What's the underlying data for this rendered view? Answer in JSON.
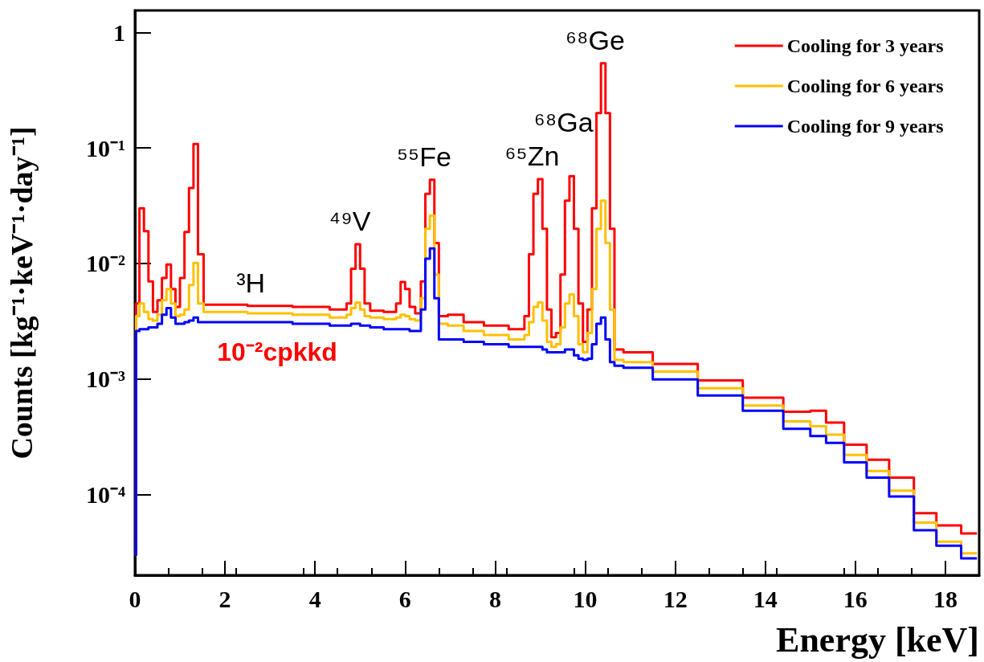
{
  "chart_data": {
    "type": "step",
    "xlabel": "Energy [keV]",
    "ylabel": "Counts [kg⁻¹·keV⁻¹·day⁻¹]",
    "x": [
      0,
      0.05,
      0.15,
      0.25,
      0.35,
      0.45,
      0.55,
      0.65,
      0.75,
      0.85,
      0.95,
      1.05,
      1.15,
      1.25,
      1.35,
      1.45,
      1.6,
      2,
      3,
      4,
      4.65,
      4.75,
      4.85,
      4.95,
      5.05,
      5.15,
      5.3,
      5.75,
      5.85,
      5.95,
      6.05,
      6.15,
      6.3,
      6.4,
      6.5,
      6.6,
      6.7,
      6.8,
      7.1,
      7.5,
      8,
      8.6,
      8.7,
      8.8,
      8.9,
      9.0,
      9.1,
      9.2,
      9.3,
      9.4,
      9.5,
      9.6,
      9.7,
      9.8,
      9.9,
      10.0,
      10.1,
      10.2,
      10.3,
      10.4,
      10.5,
      10.6,
      10.7,
      11,
      12,
      13,
      14,
      14.8,
      15.2,
      15.5,
      16,
      16.5,
      17,
      17.6,
      18,
      18.7
    ],
    "series": [
      {
        "name": "Cooling for 3 years",
        "color": "#ff0000",
        "values": [
          3e-05,
          0.0045,
          0.03,
          0.019,
          0.007,
          0.0038,
          0.0048,
          0.0075,
          0.0098,
          0.006,
          0.0042,
          0.0075,
          0.0187,
          0.045,
          0.108,
          0.012,
          0.0044,
          0.0044,
          0.0043,
          0.0042,
          0.004,
          0.0045,
          0.009,
          0.0147,
          0.009,
          0.0045,
          0.0039,
          0.0038,
          0.0045,
          0.0069,
          0.006,
          0.0042,
          0.0037,
          0.007,
          0.04,
          0.053,
          0.015,
          0.0035,
          0.0036,
          0.0031,
          0.0029,
          0.0027,
          0.0035,
          0.012,
          0.04,
          0.0536,
          0.02,
          0.004,
          0.0023,
          0.0025,
          0.008,
          0.035,
          0.057,
          0.02,
          0.0045,
          0.0021,
          0.004,
          0.03,
          0.2,
          0.54,
          0.2,
          0.02,
          0.0018,
          0.0017,
          0.00135,
          0.00097,
          0.00069,
          0.00052,
          0.00053,
          0.00042,
          0.00027,
          0.0002,
          0.00014,
          6.9e-05,
          5.4e-05,
          4.6e-05
        ]
      },
      {
        "name": "Cooling for 6 years",
        "color": "#ffc000",
        "values": [
          3e-05,
          0.0035,
          0.0045,
          0.0038,
          0.0033,
          0.0032,
          0.0036,
          0.0048,
          0.006,
          0.0045,
          0.0035,
          0.0036,
          0.004,
          0.0065,
          0.0101,
          0.0045,
          0.0038,
          0.0038,
          0.0037,
          0.0036,
          0.0034,
          0.0036,
          0.0041,
          0.0046,
          0.004,
          0.0035,
          0.0034,
          0.0033,
          0.0034,
          0.0036,
          0.0035,
          0.0033,
          0.0032,
          0.005,
          0.02,
          0.026,
          0.008,
          0.003,
          0.0029,
          0.0026,
          0.0024,
          0.0022,
          0.0024,
          0.0031,
          0.0042,
          0.0046,
          0.0032,
          0.0021,
          0.0019,
          0.002,
          0.0028,
          0.0045,
          0.0054,
          0.0035,
          0.002,
          0.0017,
          0.0025,
          0.006,
          0.02,
          0.035,
          0.015,
          0.004,
          0.00146,
          0.0014,
          0.00116,
          0.00083,
          0.00059,
          0.00043,
          0.00039,
          0.00033,
          0.00022,
          0.00016,
          0.000108,
          5.7e-05,
          3.9e-05,
          3.1e-05
        ]
      },
      {
        "name": "Cooling for 9 years",
        "color": "#0000ff",
        "values": [
          3e-05,
          0.0026,
          0.0027,
          0.0027,
          0.0028,
          0.0028,
          0.003,
          0.0036,
          0.0041,
          0.0034,
          0.003,
          0.003,
          0.0031,
          0.0032,
          0.0034,
          0.0031,
          0.0031,
          0.0031,
          0.0031,
          0.003,
          0.0029,
          0.0029,
          0.003,
          0.003,
          0.0029,
          0.0029,
          0.0028,
          0.0027,
          0.0027,
          0.0027,
          0.0027,
          0.0026,
          0.0026,
          0.004,
          0.011,
          0.0135,
          0.005,
          0.0022,
          0.0022,
          0.0021,
          0.002,
          0.0019,
          0.0019,
          0.0019,
          0.0019,
          0.0019,
          0.0018,
          0.0017,
          0.0017,
          0.0017,
          0.0017,
          0.0018,
          0.0018,
          0.0016,
          0.0015,
          0.00146,
          0.0015,
          0.002,
          0.003,
          0.0034,
          0.0022,
          0.0014,
          0.0013,
          0.00125,
          0.00099,
          0.00072,
          0.00053,
          0.00037,
          0.00032,
          0.00028,
          0.00019,
          0.00014,
          9.6e-05,
          4.9e-05,
          3.6e-05,
          2.8e-05
        ]
      }
    ],
    "xlim": [
      0,
      18.75
    ],
    "xticks": [
      0,
      2,
      4,
      6,
      8,
      10,
      12,
      14,
      16,
      18
    ],
    "ylim": [
      2e-05,
      1.55
    ],
    "yticks": [
      {
        "value": 0.0001,
        "label": "10⁻⁴"
      },
      {
        "value": 0.001,
        "label": "10⁻³"
      },
      {
        "value": 0.01,
        "label": "10⁻²"
      },
      {
        "value": 0.1,
        "label": "10⁻¹"
      },
      1
    ],
    "log": "y",
    "grid": false,
    "legend": "top right",
    "marker": "none",
    "line_style": "solid",
    "annotations": [
      {
        "text": "³H",
        "x": 2.75,
        "y": 0.0043
      },
      {
        "text": "⁴⁹V",
        "x": 4.95,
        "y": 0.0147
      },
      {
        "text": "⁵⁵Fe",
        "x": 6.6,
        "y": 0.053
      },
      {
        "text": "⁶⁵Zn",
        "x": 9.0,
        "y": 0.0536
      },
      {
        "text": "⁶⁸Ga",
        "x": 9.7,
        "y": 0.057
      },
      {
        "text": "⁶⁸Ge",
        "x": 10.4,
        "y": 0.54
      },
      "10⁻²cpkkd"
    ]
  }
}
